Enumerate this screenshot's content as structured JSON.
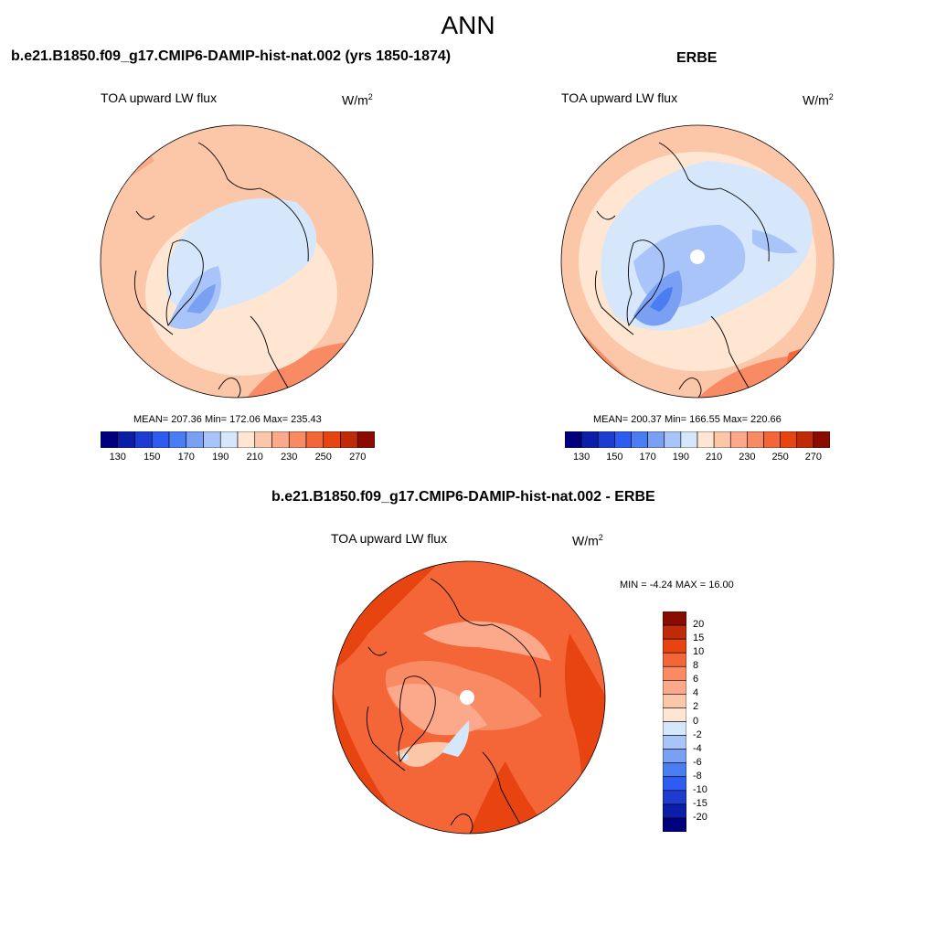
{
  "figure_title": "ANN",
  "palettes": {
    "field": [
      "#00007f",
      "#0a1ea8",
      "#1e3cd2",
      "#2e5cf0",
      "#4a7cf2",
      "#7aa0f4",
      "#a8c4f8",
      "#d6e6fb",
      "#fee6d2",
      "#fcc6a8",
      "#fca88a",
      "#f88a64",
      "#f46638",
      "#e84412",
      "#c02a08",
      "#8a0c00"
    ],
    "diff": [
      "#00007f",
      "#0a1ea8",
      "#1e3cd2",
      "#2e5cf0",
      "#4a7cf2",
      "#7aa0f4",
      "#a8c4f8",
      "#d6e6fb",
      "#fee6d2",
      "#fcc6a8",
      "#fca88a",
      "#f88a64",
      "#f46638",
      "#e84412",
      "#c02a08",
      "#8a0c00"
    ]
  },
  "panels": [
    {
      "id": "model",
      "title": "b.e21.B1850.f09_g17.CMIP6-DAMIP-hist-nat.002 (yrs 1850-1874)",
      "field_label": "TOA upward LW flux",
      "units_base": "W/m",
      "units_exp": "2",
      "stats_text": "MEAN= 207.36  Min= 172.06  Max= 235.43",
      "stats": {
        "mean": 207.36,
        "min": 172.06,
        "max": 235.43
      },
      "colorbar_ticks": [
        "130",
        "150",
        "170",
        "190",
        "210",
        "230",
        "250",
        "270"
      ],
      "pole_hole": false
    },
    {
      "id": "obs",
      "title": "ERBE",
      "field_label": "TOA upward LW flux",
      "units_base": "W/m",
      "units_exp": "2",
      "stats_text": "MEAN= 200.37  Min= 166.55  Max= 220.66",
      "stats": {
        "mean": 200.37,
        "min": 166.55,
        "max": 220.66
      },
      "colorbar_ticks": [
        "130",
        "150",
        "170",
        "190",
        "210",
        "230",
        "250",
        "270"
      ],
      "pole_hole": true
    },
    {
      "id": "diff",
      "title": "b.e21.B1850.f09_g17.CMIP6-DAMIP-hist-nat.002 - ERBE",
      "field_label": "TOA upward LW flux",
      "units_base": "W/m",
      "units_exp": "2",
      "stats_text": "MIN =  -4.24 MAX =  16.00",
      "stats": {
        "min": -4.24,
        "max": 16.0
      },
      "colorbar_ticks": [
        "20",
        "15",
        "10",
        "8",
        "6",
        "4",
        "2",
        "0",
        "-2",
        "-4",
        "-6",
        "-8",
        "-10",
        "-15",
        "-20"
      ],
      "pole_hole": true
    }
  ]
}
